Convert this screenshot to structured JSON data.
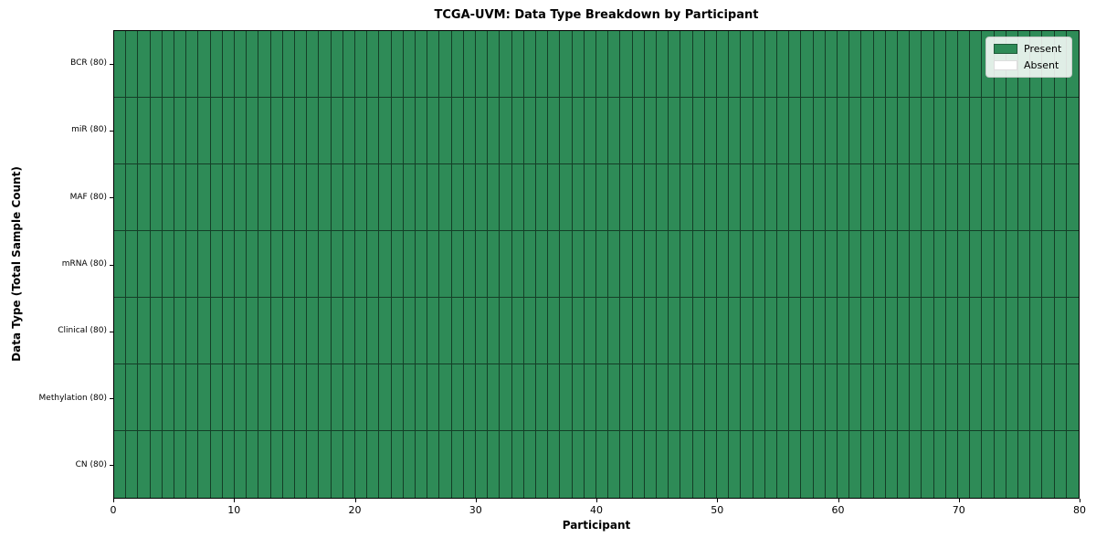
{
  "chart_data": {
    "type": "heatmap",
    "title": "TCGA-UVM: Data Type Breakdown by Participant",
    "xlabel": "Participant",
    "ylabel": "Data Type (Total Sample Count)",
    "x_range": [
      0,
      80
    ],
    "x_ticks": [
      "0",
      "10",
      "20",
      "30",
      "40",
      "50",
      "60",
      "70",
      "80"
    ],
    "n_participants": 80,
    "rows": [
      {
        "label": "BCR (80)",
        "data_type": "BCR",
        "total_samples": 80,
        "present": 80,
        "absent": 0
      },
      {
        "label": "miR (80)",
        "data_type": "miR",
        "total_samples": 80,
        "present": 80,
        "absent": 0
      },
      {
        "label": "MAF (80)",
        "data_type": "MAF",
        "total_samples": 80,
        "present": 80,
        "absent": 0
      },
      {
        "label": "mRNA (80)",
        "data_type": "mRNA",
        "total_samples": 80,
        "present": 80,
        "absent": 0
      },
      {
        "label": "Clinical (80)",
        "data_type": "Clinical",
        "total_samples": 80,
        "present": 80,
        "absent": 0
      },
      {
        "label": "Methylation (80)",
        "data_type": "Methylation",
        "total_samples": 80,
        "present": 80,
        "absent": 0
      },
      {
        "label": "CN (80)",
        "data_type": "CN",
        "total_samples": 80,
        "present": 80,
        "absent": 0
      }
    ],
    "legend": [
      {
        "label": "Present",
        "color": "#2e8b57"
      },
      {
        "label": "Absent",
        "color": "#ffffff"
      }
    ],
    "legend_position": "upper right",
    "colors": {
      "present": "#2e8b57",
      "absent": "#ffffff",
      "cell_border": "rgba(0,0,0,0.55)",
      "spine": "#000000"
    }
  }
}
